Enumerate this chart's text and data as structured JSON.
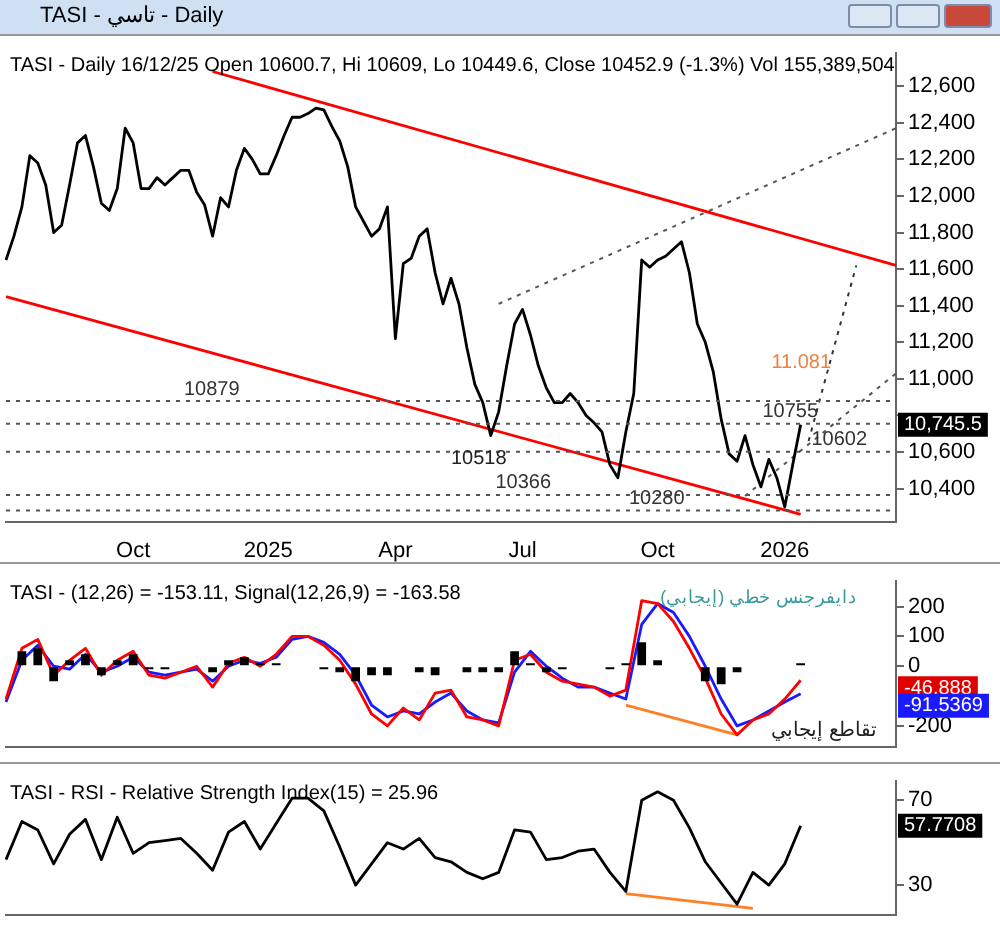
{
  "chart_data": [
    {
      "type": "line",
      "title": "TASI - تاسي - Daily",
      "subtitle": "TASI - Daily 16/12/25 Open 10600.7, Hi 10609, Lo 10449.6, Close 10452.9 (-1.3%) Vol 155,389,504",
      "categories": [
        null,
        null,
        null,
        null,
        null,
        null,
        null,
        null,
        null,
        null,
        null,
        null,
        null,
        null,
        null,
        null,
        "Oct",
        null,
        null,
        null,
        null,
        null,
        null,
        null,
        null,
        null,
        null,
        null,
        null,
        null,
        null,
        null,
        null,
        "2025",
        null,
        null,
        null,
        null,
        null,
        null,
        null,
        null,
        null,
        null,
        null,
        null,
        null,
        null,
        null,
        "Apr",
        null,
        null,
        null,
        null,
        null,
        null,
        null,
        null,
        null,
        null,
        null,
        null,
        null,
        null,
        null,
        "Jul",
        null,
        null,
        null,
        null,
        null,
        null,
        null,
        null,
        null,
        null,
        null,
        null,
        null,
        null,
        null,
        null,
        "Oct",
        null,
        null,
        null,
        null,
        null,
        null,
        null,
        null,
        null,
        null,
        null,
        null,
        null,
        null,
        null,
        "2026",
        null,
        null,
        null,
        null,
        null,
        null,
        null,
        null,
        null,
        null,
        null,
        null,
        null,
        null
      ],
      "series": [
        {
          "color": "#000000",
          "values": [
            11650,
            11780,
            11940,
            12220,
            12180,
            12060,
            11800,
            11840,
            12060,
            12290,
            12330,
            12160,
            11960,
            11920,
            12040,
            12370,
            12290,
            12040,
            12040,
            12100,
            12060,
            12100,
            12140,
            12140,
            12020,
            11950,
            11780,
            11990,
            11940,
            12140,
            12260,
            12200,
            12120,
            12120,
            12220,
            12330,
            12430,
            12430,
            12450,
            12480,
            12470,
            12380,
            12300,
            12160,
            11940,
            11860,
            11780,
            11820,
            11940,
            11220,
            11630,
            11660,
            11780,
            11820,
            11580,
            11410,
            11550,
            11410,
            11170,
            10970,
            10870,
            10690,
            10820,
            11070,
            11300,
            11380,
            11240,
            11070,
            10950,
            10870,
            10870,
            10920,
            10870,
            10800,
            10760,
            10710,
            10530,
            10460,
            10710,
            10920,
            11650,
            11610,
            11650,
            11670,
            11710,
            11750,
            11580,
            11300,
            11200,
            11040,
            10780,
            10590,
            10550,
            10690,
            10530,
            10410,
            10560,
            10460,
            10300,
            10530,
            10750,
            null,
            null,
            null,
            null,
            null,
            null,
            null,
            null,
            null,
            null,
            null,
            null
          ]
        },
        {
          "color": "#ff0000",
          "values": [
            null,
            null,
            null,
            null,
            null,
            null,
            null,
            null,
            null,
            null,
            null,
            null,
            null,
            null,
            null,
            null,
            null,
            null,
            null,
            null,
            null,
            null,
            null,
            null,
            null,
            null,
            12680,
            null,
            null,
            null,
            null,
            null,
            null,
            null,
            null,
            null,
            null,
            null,
            null,
            null,
            null,
            null,
            null,
            null,
            null,
            null,
            null,
            null,
            null,
            null,
            null,
            null,
            null,
            null,
            null,
            null,
            null,
            null,
            null,
            null,
            null,
            null,
            null,
            null,
            null,
            null,
            null,
            null,
            null,
            null,
            null,
            null,
            null,
            null,
            null,
            null,
            null,
            null,
            null,
            null,
            null,
            null,
            null,
            null,
            null,
            null,
            null,
            null,
            null,
            null,
            null,
            null,
            null,
            null,
            null,
            null,
            null,
            null,
            null,
            null,
            null,
            null,
            null,
            null,
            null,
            null,
            null,
            null,
            null,
            null,
            null,
            null,
            11620
          ]
        },
        {
          "color": "#ff0000",
          "values": [
            11450,
            null,
            null,
            null,
            null,
            null,
            null,
            null,
            null,
            null,
            null,
            null,
            null,
            null,
            null,
            null,
            null,
            null,
            null,
            null,
            null,
            null,
            null,
            null,
            null,
            null,
            null,
            null,
            null,
            null,
            null,
            null,
            null,
            null,
            null,
            null,
            null,
            null,
            null,
            null,
            null,
            null,
            null,
            null,
            null,
            null,
            null,
            null,
            null,
            null,
            null,
            null,
            null,
            null,
            null,
            null,
            null,
            null,
            null,
            null,
            null,
            null,
            null,
            null,
            null,
            null,
            null,
            null,
            null,
            null,
            null,
            null,
            null,
            null,
            null,
            null,
            null,
            null,
            null,
            null,
            null,
            null,
            null,
            null,
            null,
            null,
            null,
            null,
            null,
            null,
            null,
            null,
            null,
            null,
            null,
            null,
            null,
            null,
            null,
            null,
            10260,
            null,
            null,
            null,
            null,
            null,
            null,
            null,
            null,
            null,
            null,
            null,
            null
          ]
        },
        {
          "color": "#555555",
          "line_style": "dotted",
          "values": [
            null,
            null,
            null,
            null,
            null,
            null,
            null,
            null,
            null,
            null,
            null,
            null,
            null,
            null,
            null,
            null,
            null,
            null,
            null,
            null,
            null,
            null,
            null,
            null,
            null,
            null,
            null,
            null,
            null,
            null,
            null,
            null,
            null,
            null,
            null,
            null,
            null,
            null,
            null,
            null,
            null,
            null,
            null,
            null,
            null,
            null,
            null,
            null,
            null,
            null,
            null,
            null,
            null,
            null,
            null,
            null,
            null,
            null,
            null,
            null,
            null,
            null,
            11410,
            null,
            null,
            null,
            null,
            null,
            null,
            null,
            null,
            null,
            null,
            null,
            null,
            null,
            null,
            null,
            null,
            null,
            null,
            null,
            null,
            null,
            null,
            null,
            null,
            null,
            null,
            null,
            null,
            null,
            null,
            null,
            null,
            null,
            null,
            null,
            null,
            null,
            null,
            null,
            null,
            null,
            null,
            null,
            null,
            null,
            null,
            null,
            null,
            null,
            12370
          ]
        },
        {
          "color": "#555555",
          "line_style": "dotted",
          "values": [
            null,
            null,
            null,
            null,
            null,
            null,
            null,
            null,
            null,
            null,
            null,
            null,
            null,
            null,
            null,
            null,
            null,
            null,
            null,
            null,
            null,
            null,
            null,
            null,
            null,
            null,
            null,
            null,
            null,
            null,
            null,
            null,
            null,
            null,
            null,
            null,
            null,
            null,
            null,
            null,
            null,
            null,
            null,
            null,
            null,
            null,
            null,
            null,
            null,
            null,
            null,
            null,
            null,
            null,
            null,
            null,
            null,
            null,
            null,
            null,
            null,
            null,
            null,
            null,
            null,
            null,
            null,
            null,
            null,
            null,
            null,
            null,
            null,
            null,
            null,
            null,
            null,
            null,
            null,
            null,
            null,
            null,
            null,
            null,
            null,
            null,
            null,
            null,
            null,
            null,
            null,
            null,
            null,
            10360,
            null,
            null,
            null,
            null,
            null,
            null,
            null,
            null,
            null,
            null,
            null,
            null,
            null,
            null,
            null,
            null,
            null,
            null,
            11030
          ]
        },
        {
          "color": "#333333",
          "line_style": "dotted",
          "values": [
            null,
            null,
            null,
            null,
            null,
            null,
            null,
            null,
            null,
            null,
            null,
            null,
            null,
            null,
            null,
            null,
            null,
            null,
            null,
            null,
            null,
            null,
            null,
            null,
            null,
            null,
            null,
            null,
            null,
            null,
            null,
            null,
            null,
            null,
            null,
            null,
            null,
            null,
            null,
            null,
            null,
            null,
            null,
            null,
            null,
            null,
            null,
            null,
            null,
            null,
            null,
            null,
            null,
            null,
            null,
            null,
            null,
            null,
            null,
            null,
            null,
            null,
            null,
            null,
            null,
            null,
            null,
            null,
            null,
            null,
            null,
            null,
            null,
            null,
            null,
            null,
            null,
            null,
            null,
            null,
            null,
            null,
            null,
            null,
            null,
            null,
            null,
            null,
            null,
            null,
            null,
            null,
            null,
            null,
            null,
            null,
            null,
            null,
            null,
            null,
            null,
            10660,
            null,
            null,
            null,
            null,
            null,
            11620,
            null,
            null,
            null,
            null,
            null
          ]
        }
      ],
      "ylim": [
        10220,
        12780
      ],
      "yticks": [
        {
          "value": 10400,
          "label": "10,400"
        },
        {
          "value": 10600,
          "label": "10,600"
        },
        {
          "value": 10800,
          "label": null
        },
        {
          "value": 11000,
          "label": "11,000"
        },
        {
          "value": 11200,
          "label": "11,200"
        },
        {
          "value": 11400,
          "label": "11,400"
        },
        {
          "value": 11600,
          "label": "11,600"
        },
        {
          "value": 11800,
          "label": "11,800"
        },
        {
          "value": 12000,
          "label": "12,000"
        },
        {
          "value": 12200,
          "label": "12,200"
        },
        {
          "value": 12400,
          "label": "12,400"
        },
        {
          "value": 12600,
          "label": "12,600"
        }
      ],
      "ref_lines": [
        {
          "axis": "y",
          "value": 10879,
          "label": "10879",
          "line_style": "dotted"
        },
        {
          "axis": "y",
          "value": 10755,
          "label": "10755",
          "line_style": "dotted"
        },
        {
          "axis": "y",
          "value": 10602,
          "label": "10602",
          "line_style": "dotted"
        },
        {
          "axis": "y",
          "value": 10366,
          "label": "10366",
          "line_style": "dotted"
        },
        {
          "axis": "y",
          "value": 10280,
          "label": "10280",
          "line_style": "dotted"
        }
      ],
      "annotations": [
        "10518",
        "11.081",
        "10,745.5"
      ],
      "legend": false
    },
    {
      "type": "line",
      "title": "TASI - (12,26) = -153.11, Signal(12,26,9) = -163.58",
      "categories": [
        null,
        null,
        null,
        null,
        null,
        null,
        null,
        null,
        null,
        null,
        null,
        null,
        null,
        null,
        null,
        null,
        null,
        null,
        null,
        null,
        null,
        null,
        null,
        null,
        null,
        null,
        null,
        null,
        null,
        null,
        null,
        null,
        null,
        null,
        null,
        null,
        null,
        null,
        null,
        null,
        null,
        null,
        null,
        null,
        null,
        null,
        null,
        null,
        null,
        null,
        null,
        null,
        null,
        null,
        null,
        null,
        null
      ],
      "series": [
        {
          "type": "bar",
          "color": "#000000",
          "values": [
            0,
            50,
            60,
            -50,
            20,
            40,
            -30,
            20,
            40,
            -10,
            -10,
            0,
            0,
            -20,
            20,
            30,
            10,
            10,
            0,
            0,
            -10,
            -20,
            -50,
            -30,
            -30,
            0,
            -20,
            -30,
            0,
            -20,
            -20,
            -20,
            50,
            10,
            -20,
            -10,
            0,
            0,
            -10,
            10,
            80,
            20,
            0,
            0,
            -50,
            -60,
            -20,
            0,
            0,
            0,
            10,
            null,
            null,
            null,
            null,
            null,
            null
          ]
        },
        {
          "color": "#ff0000",
          "values": [
            -110,
            60,
            90,
            -30,
            20,
            60,
            -30,
            20,
            50,
            -30,
            -40,
            -20,
            0,
            -70,
            10,
            30,
            0,
            40,
            100,
            100,
            70,
            20,
            -60,
            -160,
            -200,
            -140,
            -180,
            -90,
            -80,
            -170,
            -180,
            -200,
            20,
            40,
            -20,
            -50,
            -60,
            -70,
            -100,
            -80,
            220,
            210,
            150,
            60,
            -40,
            -160,
            -230,
            -180,
            -160,
            -110,
            -47,
            null,
            null,
            null,
            null,
            null,
            null
          ]
        },
        {
          "color": "#1a1aff",
          "values": [
            -120,
            20,
            70,
            0,
            -10,
            40,
            -20,
            0,
            30,
            -20,
            -30,
            -20,
            -10,
            -50,
            0,
            20,
            10,
            30,
            90,
            100,
            80,
            40,
            -30,
            -130,
            -170,
            -150,
            -160,
            -120,
            -90,
            -150,
            -180,
            -190,
            -20,
            50,
            0,
            -40,
            -70,
            -70,
            -90,
            -110,
            140,
            210,
            180,
            100,
            0,
            -110,
            -200,
            -180,
            -150,
            -120,
            -92,
            null,
            null,
            null,
            null,
            null,
            null
          ]
        },
        {
          "color": "#ff7f27",
          "values": [
            null,
            null,
            null,
            null,
            null,
            null,
            null,
            null,
            null,
            null,
            null,
            null,
            null,
            null,
            null,
            null,
            null,
            null,
            null,
            null,
            null,
            null,
            null,
            null,
            null,
            null,
            null,
            null,
            null,
            null,
            null,
            null,
            null,
            null,
            null,
            null,
            null,
            null,
            null,
            -130,
            null,
            null,
            null,
            null,
            null,
            null,
            -230,
            null,
            null,
            null,
            null,
            null,
            null,
            null,
            null,
            null,
            null
          ]
        }
      ],
      "ylim": [
        -270,
        285
      ],
      "yticks": [
        -200,
        0,
        100,
        200
      ],
      "tick_labels": "y",
      "annotations": [
        "دايفرجنس خطي (إيجابي)",
        "تقاطع إيجابي",
        "-46.888",
        "-91.5369"
      ],
      "legend": false
    },
    {
      "type": "line",
      "title": "TASI - RSI - Relative Strength Index(15) = 25.96",
      "categories": [
        null,
        null,
        null,
        null,
        null,
        null,
        null,
        null,
        null,
        null,
        null,
        null,
        null,
        null,
        null,
        null,
        null,
        null,
        null,
        null,
        null,
        null,
        null,
        null,
        null,
        null,
        null,
        null,
        null,
        null,
        null,
        null,
        null,
        null,
        null,
        null,
        null,
        null,
        null,
        null,
        null,
        null,
        null,
        null,
        null,
        null,
        null,
        null,
        null,
        null,
        null,
        null,
        null,
        null,
        null,
        null,
        null
      ],
      "series": [
        {
          "color": "#000000",
          "values": [
            42,
            60,
            56,
            40,
            54,
            61,
            42,
            62,
            45,
            50,
            51,
            52,
            45,
            37,
            55,
            60,
            47,
            59,
            71,
            71,
            65,
            48,
            30,
            40,
            50,
            47,
            52,
            43,
            41,
            36,
            33,
            36,
            56,
            55,
            42,
            43,
            46,
            47,
            36,
            27,
            70,
            74,
            70,
            57,
            41,
            31,
            21,
            36,
            30,
            40,
            58,
            null,
            null,
            null,
            null,
            null,
            null
          ]
        },
        {
          "color": "#ff7f27",
          "values": [
            null,
            null,
            null,
            null,
            null,
            null,
            null,
            null,
            null,
            null,
            null,
            null,
            null,
            null,
            null,
            null,
            null,
            null,
            null,
            null,
            null,
            null,
            null,
            null,
            null,
            null,
            null,
            null,
            null,
            null,
            null,
            null,
            null,
            null,
            null,
            null,
            null,
            null,
            null,
            26,
            null,
            null,
            null,
            null,
            null,
            null,
            null,
            19,
            null,
            null,
            null,
            null,
            null,
            null,
            null,
            null,
            null
          ]
        }
      ],
      "ylim": [
        16,
        79
      ],
      "yticks": [
        30,
        70
      ],
      "tick_labels": "y",
      "annotations": [
        "57.7708"
      ],
      "legend": false
    }
  ]
}
